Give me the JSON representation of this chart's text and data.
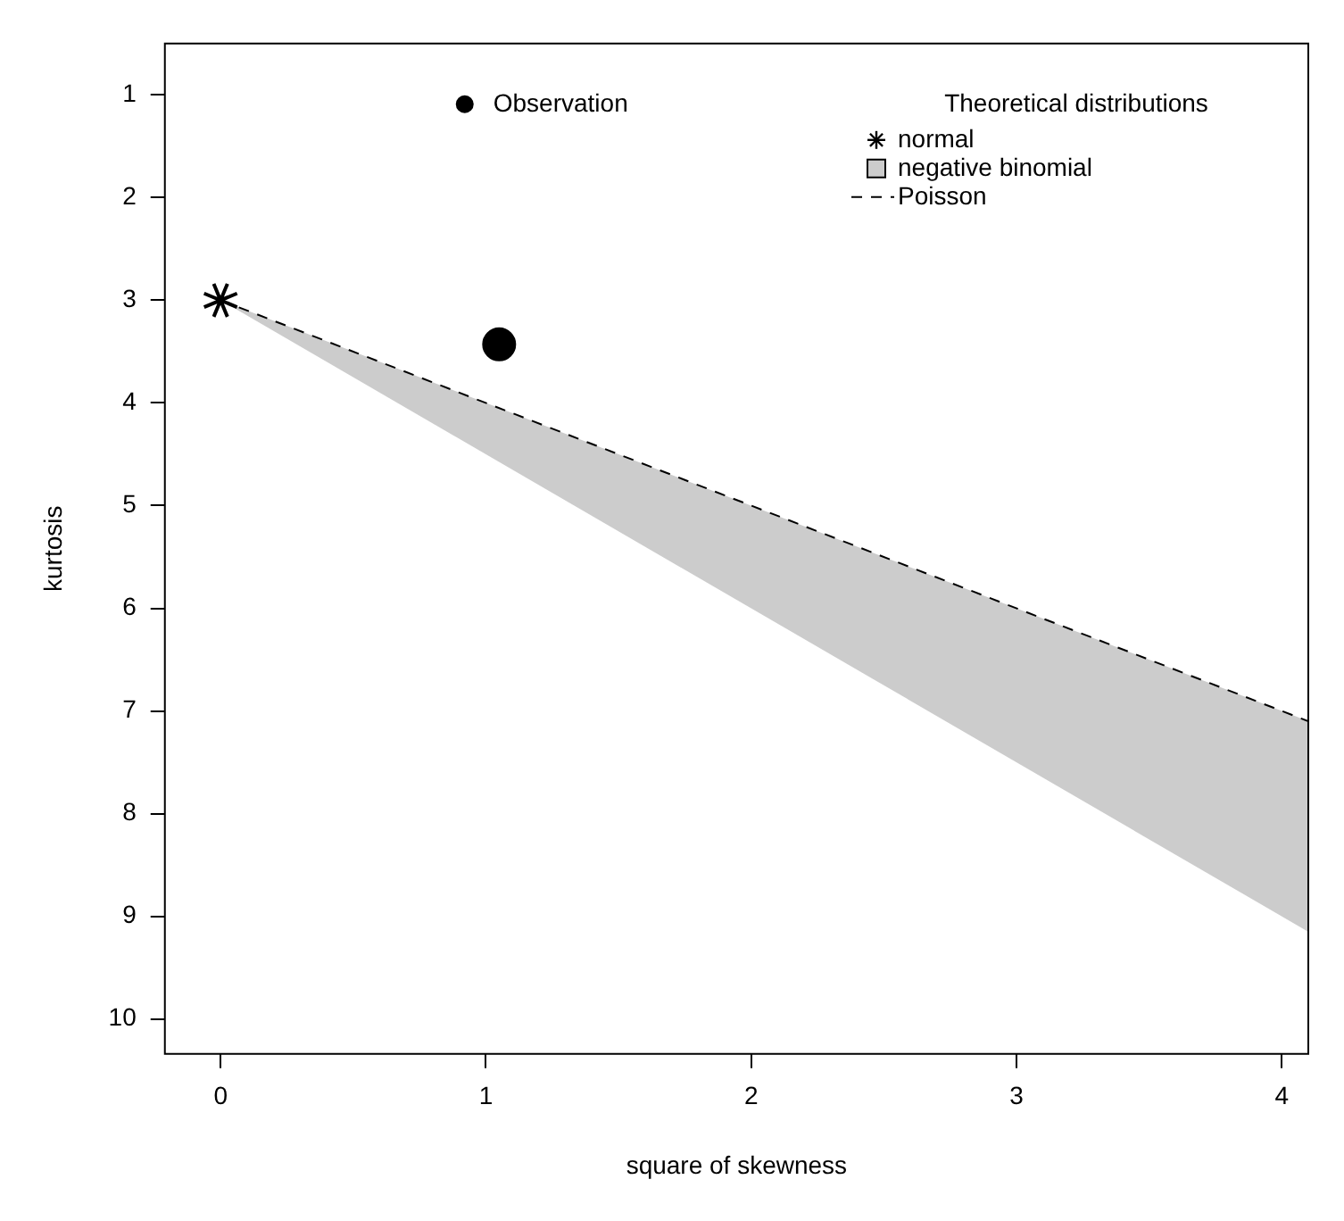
{
  "chart_data": {
    "type": "scatter",
    "xlabel": "square of skewness",
    "ylabel": "kurtosis",
    "legend_title": "Theoretical distributions",
    "legend": "top right",
    "grid": false,
    "xlim": [
      -0.21,
      4.1
    ],
    "ylim": [
      10.34,
      0.5
    ],
    "xticks": [
      0,
      1,
      2,
      3,
      4
    ],
    "yticks": [
      1,
      2,
      3,
      4,
      5,
      6,
      7,
      8,
      9,
      10
    ],
    "series": [
      {
        "name": "Observation",
        "type": "scatter",
        "marker": "circle",
        "color": "#000000",
        "x": [
          1.05
        ],
        "values": [
          3.43
        ]
      },
      {
        "name": "normal",
        "type": "scatter",
        "marker": "cross",
        "color": "#000000",
        "x": [
          0
        ],
        "values": [
          3
        ]
      },
      {
        "name": "negative binomial",
        "type": "area",
        "color": "#cccccc",
        "x": [
          0,
          4.1
        ],
        "values": [
          3,
          9.15
        ]
      },
      {
        "name": "Poisson",
        "type": "line",
        "line_style": "dashed",
        "color": "#000000",
        "x": [
          0,
          4.1
        ],
        "values": [
          3,
          7.1
        ]
      }
    ]
  }
}
